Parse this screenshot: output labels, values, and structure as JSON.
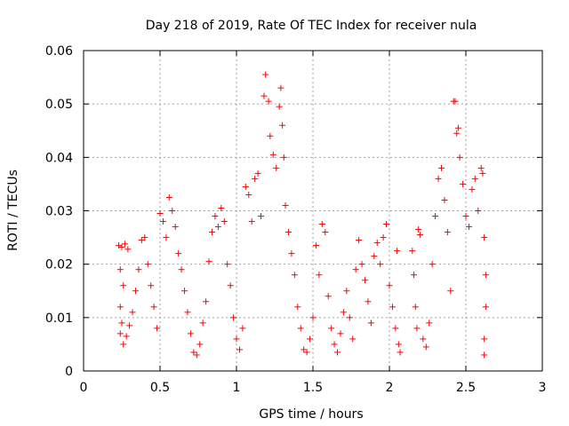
{
  "chart_data": {
    "type": "scatter",
    "title": "Day 218 of 2019, Rate Of TEC Index for receiver nula",
    "xlabel": "GPS time / hours",
    "ylabel": "ROTI / TECUs",
    "xlim": [
      0,
      3
    ],
    "ylim": [
      0,
      0.06
    ],
    "x_ticks": [
      0,
      0.5,
      1,
      1.5,
      2,
      2.5,
      3
    ],
    "x_tick_labels": [
      "0",
      "0.5",
      "1",
      "1.5",
      "2",
      "2.5",
      "3"
    ],
    "y_ticks": [
      0,
      0.01,
      0.02,
      0.03,
      0.04,
      0.05,
      0.06
    ],
    "y_tick_labels": [
      "0",
      "0.01",
      "0.02",
      "0.03",
      "0.04",
      "0.05",
      "0.06"
    ],
    "grid": true,
    "marker": "+",
    "color": "#ff0000",
    "series": [
      {
        "name": "ROTI",
        "points": [
          [
            0.23,
            0.0235
          ],
          [
            0.25,
            0.0232
          ],
          [
            0.27,
            0.0238
          ],
          [
            0.29,
            0.0228
          ],
          [
            0.24,
            0.019
          ],
          [
            0.26,
            0.016
          ],
          [
            0.24,
            0.012
          ],
          [
            0.25,
            0.009
          ],
          [
            0.24,
            0.007
          ],
          [
            0.26,
            0.005
          ],
          [
            0.28,
            0.0065
          ],
          [
            0.3,
            0.0085
          ],
          [
            0.32,
            0.011
          ],
          [
            0.34,
            0.015
          ],
          [
            0.36,
            0.019
          ],
          [
            0.38,
            0.0245
          ],
          [
            0.4,
            0.025
          ],
          [
            0.42,
            0.02
          ],
          [
            0.44,
            0.016
          ],
          [
            0.46,
            0.012
          ],
          [
            0.48,
            0.008
          ],
          [
            0.5,
            0.0295
          ],
          [
            0.52,
            0.028
          ],
          [
            0.54,
            0.025
          ],
          [
            0.56,
            0.0325
          ],
          [
            0.58,
            0.03
          ],
          [
            0.6,
            0.027
          ],
          [
            0.62,
            0.022
          ],
          [
            0.64,
            0.019
          ],
          [
            0.66,
            0.015
          ],
          [
            0.68,
            0.011
          ],
          [
            0.7,
            0.007
          ],
          [
            0.72,
            0.0035
          ],
          [
            0.74,
            0.003
          ],
          [
            0.76,
            0.005
          ],
          [
            0.78,
            0.009
          ],
          [
            0.8,
            0.013
          ],
          [
            0.82,
            0.0205
          ],
          [
            0.84,
            0.026
          ],
          [
            0.86,
            0.029
          ],
          [
            0.88,
            0.027
          ],
          [
            0.9,
            0.0305
          ],
          [
            0.92,
            0.028
          ],
          [
            0.94,
            0.02
          ],
          [
            0.96,
            0.016
          ],
          [
            0.98,
            0.01
          ],
          [
            1.0,
            0.006
          ],
          [
            1.02,
            0.004
          ],
          [
            1.04,
            0.008
          ],
          [
            1.06,
            0.0345
          ],
          [
            1.08,
            0.033
          ],
          [
            1.1,
            0.028
          ],
          [
            1.12,
            0.036
          ],
          [
            1.14,
            0.037
          ],
          [
            1.16,
            0.029
          ],
          [
            1.18,
            0.0515
          ],
          [
            1.19,
            0.0555
          ],
          [
            1.21,
            0.0505
          ],
          [
            1.22,
            0.044
          ],
          [
            1.24,
            0.0405
          ],
          [
            1.26,
            0.038
          ],
          [
            1.28,
            0.0495
          ],
          [
            1.29,
            0.053
          ],
          [
            1.3,
            0.046
          ],
          [
            1.31,
            0.04
          ],
          [
            1.32,
            0.031
          ],
          [
            1.34,
            0.026
          ],
          [
            1.36,
            0.022
          ],
          [
            1.38,
            0.018
          ],
          [
            1.4,
            0.012
          ],
          [
            1.42,
            0.008
          ],
          [
            1.44,
            0.004
          ],
          [
            1.46,
            0.0035
          ],
          [
            1.48,
            0.006
          ],
          [
            1.5,
            0.01
          ],
          [
            1.52,
            0.0235
          ],
          [
            1.54,
            0.018
          ],
          [
            1.56,
            0.0275
          ],
          [
            1.58,
            0.026
          ],
          [
            1.6,
            0.014
          ],
          [
            1.62,
            0.008
          ],
          [
            1.64,
            0.005
          ],
          [
            1.66,
            0.0035
          ],
          [
            1.68,
            0.007
          ],
          [
            1.7,
            0.011
          ],
          [
            1.72,
            0.015
          ],
          [
            1.74,
            0.01
          ],
          [
            1.76,
            0.006
          ],
          [
            1.78,
            0.019
          ],
          [
            1.8,
            0.0245
          ],
          [
            1.82,
            0.02
          ],
          [
            1.84,
            0.017
          ],
          [
            1.86,
            0.013
          ],
          [
            1.88,
            0.009
          ],
          [
            1.9,
            0.0215
          ],
          [
            1.92,
            0.024
          ],
          [
            1.94,
            0.02
          ],
          [
            1.96,
            0.025
          ],
          [
            1.98,
            0.0275
          ],
          [
            2.0,
            0.016
          ],
          [
            2.02,
            0.012
          ],
          [
            2.04,
            0.008
          ],
          [
            2.05,
            0.0225
          ],
          [
            2.06,
            0.005
          ],
          [
            2.07,
            0.0035
          ],
          [
            2.15,
            0.0225
          ],
          [
            2.16,
            0.018
          ],
          [
            2.17,
            0.012
          ],
          [
            2.18,
            0.008
          ],
          [
            2.19,
            0.0265
          ],
          [
            2.2,
            0.0255
          ],
          [
            2.22,
            0.006
          ],
          [
            2.24,
            0.0045
          ],
          [
            2.26,
            0.009
          ],
          [
            2.28,
            0.02
          ],
          [
            2.3,
            0.029
          ],
          [
            2.32,
            0.036
          ],
          [
            2.34,
            0.038
          ],
          [
            2.36,
            0.032
          ],
          [
            2.38,
            0.026
          ],
          [
            2.4,
            0.015
          ],
          [
            2.42,
            0.0505
          ],
          [
            2.43,
            0.0505
          ],
          [
            2.44,
            0.0445
          ],
          [
            2.45,
            0.0455
          ],
          [
            2.46,
            0.04
          ],
          [
            2.48,
            0.035
          ],
          [
            2.5,
            0.029
          ],
          [
            2.52,
            0.027
          ],
          [
            2.54,
            0.034
          ],
          [
            2.56,
            0.036
          ],
          [
            2.58,
            0.03
          ],
          [
            2.6,
            0.038
          ],
          [
            2.61,
            0.037
          ],
          [
            2.62,
            0.025
          ],
          [
            2.63,
            0.018
          ],
          [
            2.63,
            0.012
          ],
          [
            2.62,
            0.006
          ],
          [
            2.62,
            0.003
          ]
        ]
      }
    ]
  }
}
